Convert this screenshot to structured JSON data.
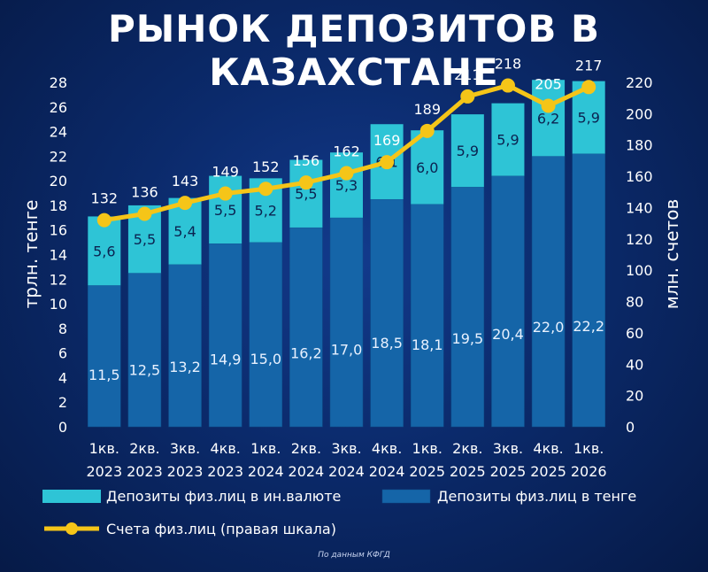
{
  "page": {
    "title": "РЫНОК ДЕПОЗИТОВ В КАЗАХСТАНЕ",
    "source": "По данным КФГД"
  },
  "colors": {
    "background": "#0b2a6b",
    "tenge_bar": "#1565a8",
    "fx_bar": "#2ec4d6",
    "accounts_line": "#f5c518",
    "text": "#ffffff"
  },
  "chart_data": {
    "type": "bar",
    "stacked": true,
    "categories": [
      [
        "1кв.",
        "2023"
      ],
      [
        "2кв.",
        "2023"
      ],
      [
        "3кв.",
        "2023"
      ],
      [
        "4кв.",
        "2023"
      ],
      [
        "1кв.",
        "2024"
      ],
      [
        "2кв.",
        "2024"
      ],
      [
        "3кв.",
        "2024"
      ],
      [
        "4кв.",
        "2024"
      ],
      [
        "1кв.",
        "2025"
      ],
      [
        "2кв.",
        "2025"
      ],
      [
        "3кв.",
        "2025"
      ],
      [
        "4кв.",
        "2025"
      ],
      [
        "1кв.",
        "2026"
      ]
    ],
    "series": [
      {
        "name": "Депозиты физ.лиц в тенге",
        "axis": "left",
        "values": [
          11.5,
          12.5,
          13.2,
          14.9,
          15.0,
          16.2,
          17.0,
          18.5,
          18.1,
          19.5,
          20.4,
          22.0,
          22.2
        ],
        "labels": [
          "11,5",
          "12,5",
          "13,2",
          "14,9",
          "15,0",
          "16,2",
          "17,0",
          "18,5",
          "18,1",
          "19,5",
          "20,4",
          "22,0",
          "22,2"
        ]
      },
      {
        "name": "Депозиты физ.лиц в ин.валюте",
        "axis": "left",
        "values": [
          5.6,
          5.5,
          5.4,
          5.5,
          5.2,
          5.5,
          5.3,
          6.1,
          6.0,
          5.9,
          5.9,
          6.2,
          5.9
        ],
        "labels": [
          "5,6",
          "5,5",
          "5,4",
          "5,5",
          "5,2",
          "5,5",
          "5,3",
          "6,1",
          "6,0",
          "5,9",
          "5,9",
          "6,2",
          "5,9"
        ]
      },
      {
        "name": "Счета физ.лиц (правая шкала)",
        "type": "line",
        "axis": "right",
        "values": [
          132,
          136,
          143,
          149,
          152,
          156,
          162,
          169,
          189,
          211,
          218,
          205,
          217
        ],
        "labels": [
          "132",
          "136",
          "143",
          "149",
          "152",
          "156",
          "162",
          "169",
          "189",
          "211",
          "218",
          "205",
          "217"
        ]
      }
    ],
    "ylabel": "трлн. тенге",
    "ylim": [
      0,
      28
    ],
    "yticks": [
      "0",
      "2",
      "4",
      "6",
      "8",
      "10",
      "12",
      "14",
      "16",
      "18",
      "20",
      "22",
      "24",
      "26",
      "28"
    ],
    "y2label": "млн. счетов",
    "y2lim": [
      0,
      220
    ],
    "y2ticks": [
      "0",
      "20",
      "40",
      "60",
      "80",
      "100",
      "120",
      "140",
      "160",
      "180",
      "200",
      "220"
    ],
    "legend": "bottom",
    "grid": false
  }
}
